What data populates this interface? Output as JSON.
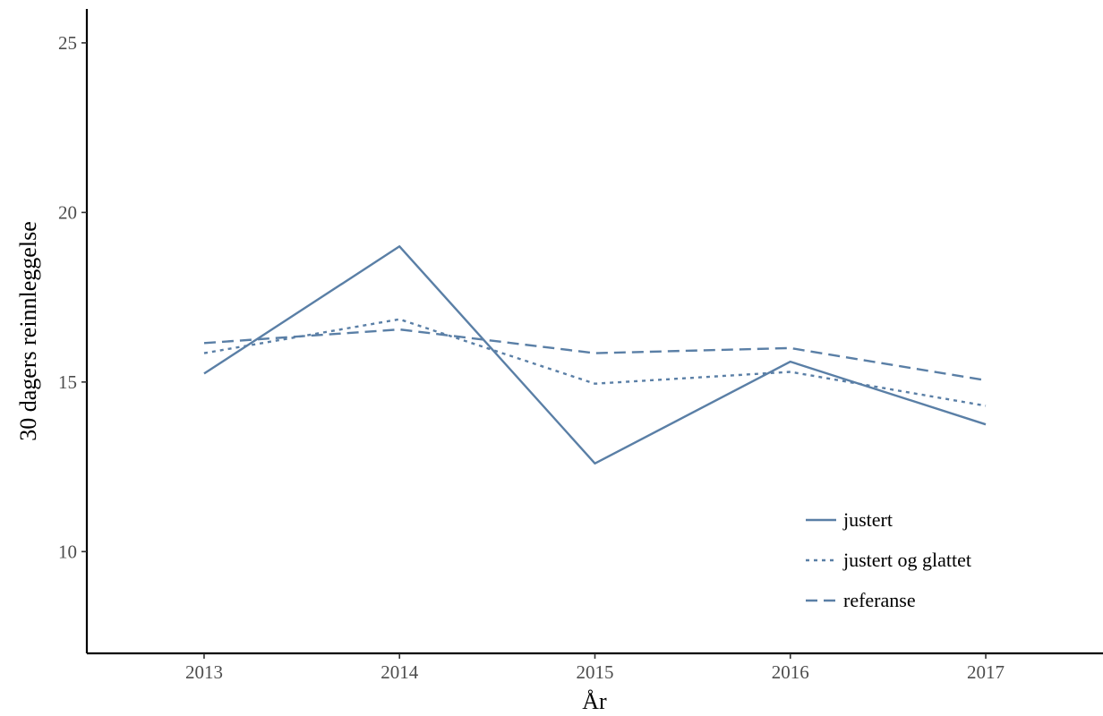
{
  "chart_data": {
    "type": "line",
    "xlabel": "År",
    "ylabel": "30 dagers reinnleggelse",
    "x": [
      2013,
      2014,
      2015,
      2016,
      2017
    ],
    "xlim": [
      2012.4,
      2017.6
    ],
    "ylim": [
      7.0,
      26.0
    ],
    "yticks": [
      10,
      15,
      20,
      25
    ],
    "grid": false,
    "legend_position": "bottom-right, inside plot",
    "series_color": "#5a7fa6",
    "series": [
      {
        "name": "justert",
        "line_style": "solid",
        "values": [
          15.25,
          19.0,
          12.6,
          15.6,
          13.75
        ]
      },
      {
        "name": "justert og glattet",
        "line_style": "dotted",
        "values": [
          15.85,
          16.85,
          14.95,
          15.3,
          14.3
        ]
      },
      {
        "name": "referanse",
        "line_style": "dashed",
        "values": [
          16.15,
          16.55,
          15.85,
          16.0,
          15.05
        ]
      }
    ]
  }
}
